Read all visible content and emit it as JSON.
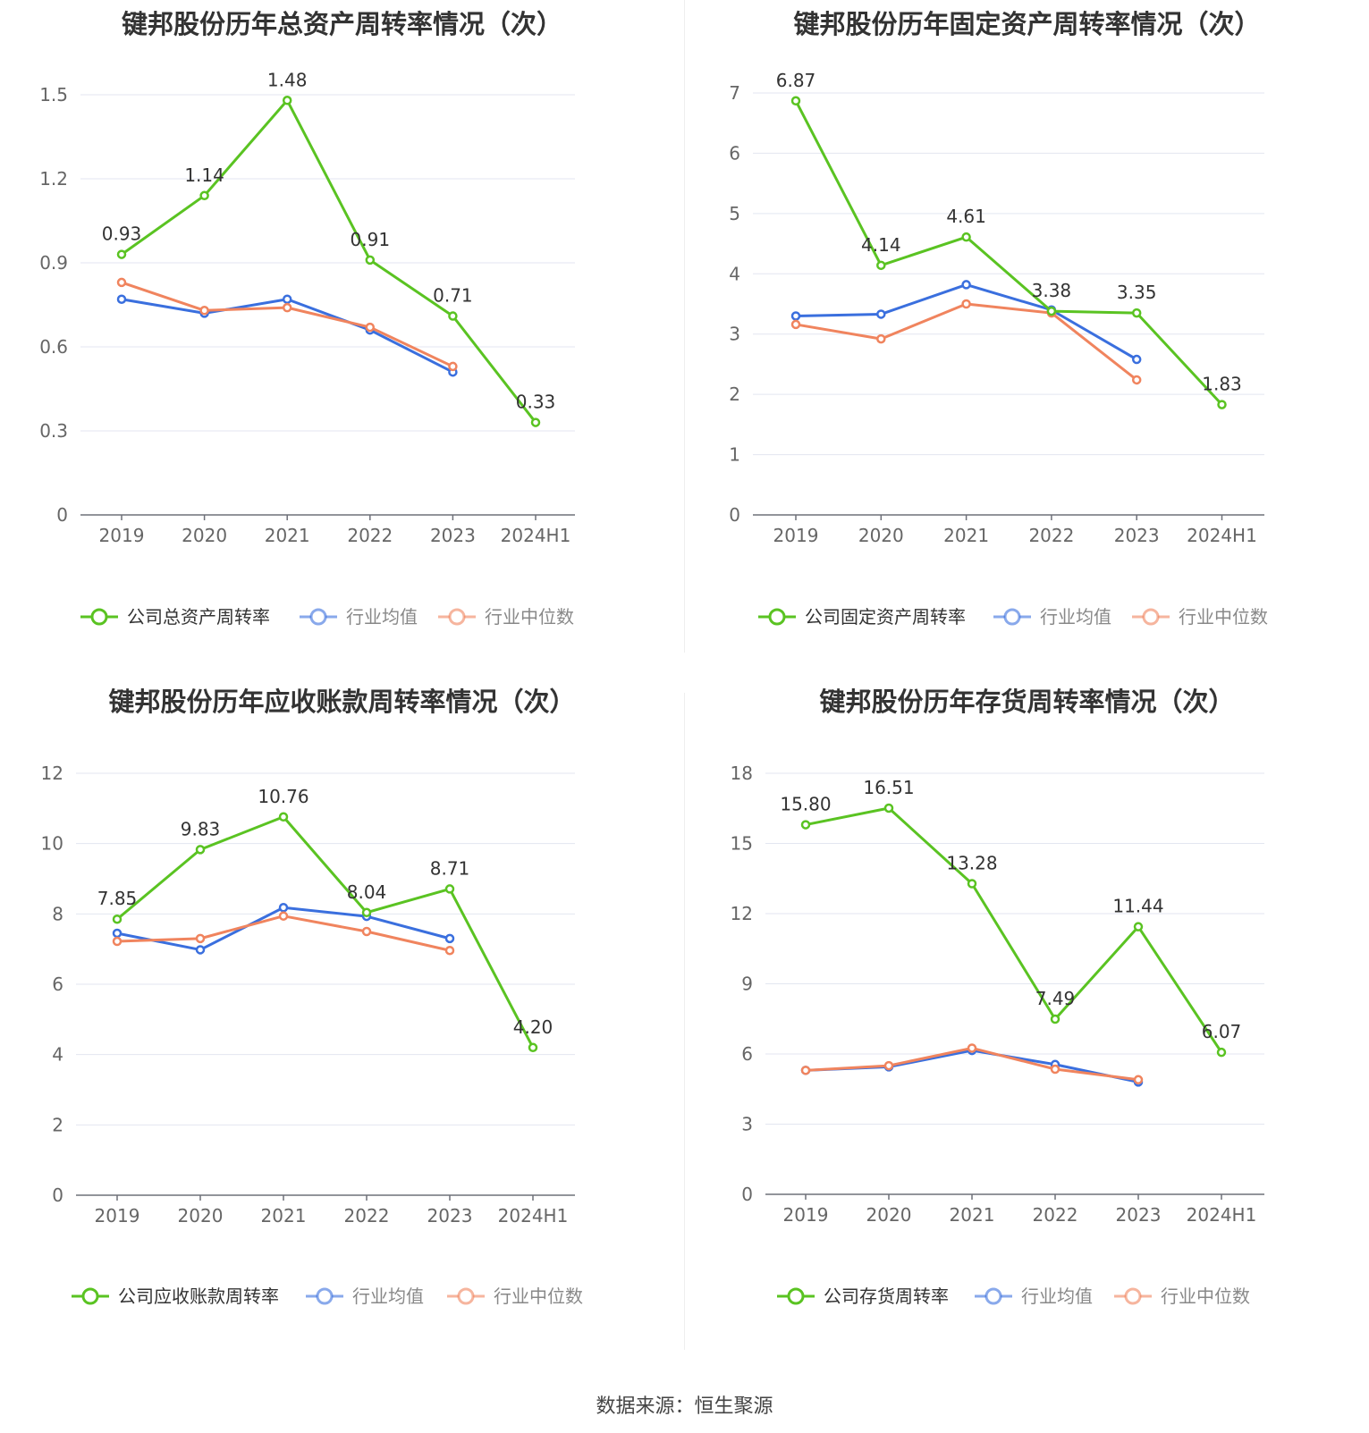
{
  "source": "数据来源：恒生聚源",
  "colors": {
    "company": "#5ac322",
    "average": "#3a6fde",
    "median": "#f0845e"
  },
  "chart_data": [
    {
      "type": "line",
      "title": "键邦股份历年总资产周转率情况（次）",
      "categories": [
        "2019",
        "2020",
        "2021",
        "2022",
        "2023",
        "2024H1"
      ],
      "ylim": [
        0,
        1.5
      ],
      "yticks": [
        "0",
        "0.3",
        "0.6",
        "0.9",
        "1.2",
        "1.5"
      ],
      "grid": true,
      "legend_position": "bottom",
      "series": [
        {
          "name": "公司总资产周转率",
          "values": [
            0.93,
            1.14,
            1.48,
            0.91,
            0.71,
            0.33
          ],
          "labels": [
            "0.93",
            "1.14",
            "1.48",
            "0.91",
            "0.71",
            "0.33"
          ]
        },
        {
          "name": "行业均值",
          "values": [
            0.77,
            0.72,
            0.77,
            0.66,
            0.51,
            null
          ]
        },
        {
          "name": "行业中位数",
          "values": [
            0.83,
            0.73,
            0.74,
            0.67,
            0.53,
            null
          ]
        }
      ]
    },
    {
      "type": "line",
      "title": "键邦股份历年固定资产周转率情况（次）",
      "categories": [
        "2019",
        "2020",
        "2021",
        "2022",
        "2023",
        "2024H1"
      ],
      "ylim": [
        0,
        7
      ],
      "yticks": [
        "0",
        "1",
        "2",
        "3",
        "4",
        "5",
        "6",
        "7"
      ],
      "grid": true,
      "legend_position": "bottom",
      "series": [
        {
          "name": "公司固定资产周转率",
          "values": [
            6.87,
            4.14,
            4.61,
            3.38,
            3.35,
            1.83
          ],
          "labels": [
            "6.87",
            "4.14",
            "4.61",
            "3.38",
            "3.35",
            "1.83"
          ]
        },
        {
          "name": "行业均值",
          "values": [
            3.3,
            3.33,
            3.82,
            3.4,
            2.58,
            null
          ]
        },
        {
          "name": "行业中位数",
          "values": [
            3.16,
            2.92,
            3.5,
            3.35,
            2.24,
            null
          ]
        }
      ]
    },
    {
      "type": "line",
      "title": "键邦股份历年应收账款周转率情况（次）",
      "categories": [
        "2019",
        "2020",
        "2021",
        "2022",
        "2023",
        "2024H1"
      ],
      "ylim": [
        0,
        12
      ],
      "yticks": [
        "0",
        "2",
        "4",
        "6",
        "8",
        "10",
        "12"
      ],
      "grid": true,
      "legend_position": "bottom",
      "series": [
        {
          "name": "公司应收账款周转率",
          "values": [
            7.85,
            9.83,
            10.76,
            8.04,
            8.71,
            4.2
          ],
          "labels": [
            "7.85",
            "9.83",
            "10.76",
            "8.04",
            "8.71",
            "4.20"
          ]
        },
        {
          "name": "行业均值",
          "values": [
            7.45,
            6.98,
            8.18,
            7.93,
            7.3,
            null
          ]
        },
        {
          "name": "行业中位数",
          "values": [
            7.22,
            7.3,
            7.94,
            7.5,
            6.96,
            null
          ]
        }
      ]
    },
    {
      "type": "line",
      "title": "键邦股份历年存货周转率情况（次）",
      "categories": [
        "2019",
        "2020",
        "2021",
        "2022",
        "2023",
        "2024H1"
      ],
      "ylim": [
        0,
        18
      ],
      "yticks": [
        "0",
        "3",
        "6",
        "9",
        "12",
        "15",
        "18"
      ],
      "grid": true,
      "legend_position": "bottom",
      "series": [
        {
          "name": "公司存货周转率",
          "values": [
            15.8,
            16.51,
            13.28,
            7.49,
            11.44,
            6.07
          ],
          "labels": [
            "15.80",
            "16.51",
            "13.28",
            "7.49",
            "11.44",
            "6.07"
          ]
        },
        {
          "name": "行业均值",
          "values": [
            5.3,
            5.45,
            6.15,
            5.55,
            4.8,
            null
          ]
        },
        {
          "name": "行业中位数",
          "values": [
            5.3,
            5.5,
            6.25,
            5.35,
            4.9,
            null
          ]
        }
      ]
    }
  ]
}
